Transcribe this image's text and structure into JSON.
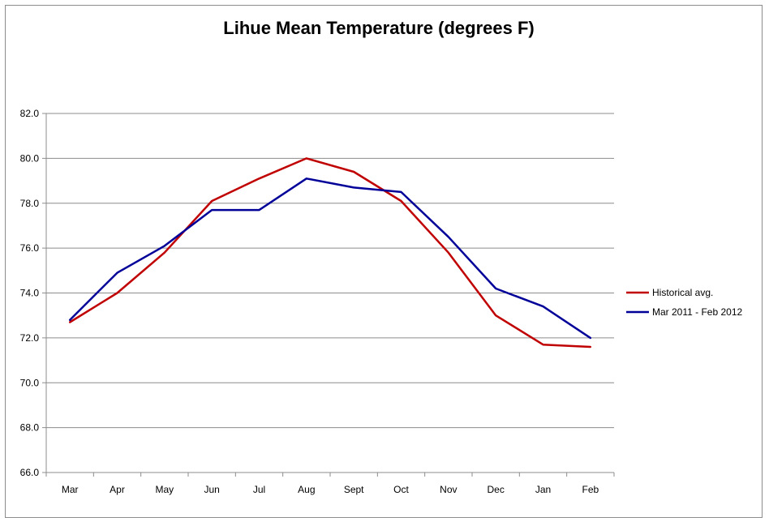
{
  "chart_data": {
    "type": "line",
    "title": "Lihue Mean Temperature (degrees F)",
    "xlabel": "",
    "ylabel": "",
    "categories": [
      "Mar",
      "Apr",
      "May",
      "Jun",
      "Jul",
      "Aug",
      "Sept",
      "Oct",
      "Nov",
      "Dec",
      "Jan",
      "Feb"
    ],
    "yticks": [
      "66.0",
      "68.0",
      "70.0",
      "72.0",
      "74.0",
      "76.0",
      "78.0",
      "80.0",
      "82.0"
    ],
    "ylim": [
      66,
      82
    ],
    "grid": true,
    "legend_position": "right",
    "series": [
      {
        "name": "Historical avg.",
        "color": "#c00000",
        "values": [
          72.7,
          74.0,
          75.8,
          78.1,
          79.1,
          80.0,
          79.4,
          78.1,
          75.8,
          73.0,
          71.7,
          71.6
        ]
      },
      {
        "name": "Mar 2011 - Feb 2012",
        "color": "#000099",
        "values": [
          72.8,
          74.9,
          76.1,
          77.7,
          77.7,
          79.1,
          78.7,
          78.5,
          76.5,
          74.2,
          73.4,
          72.0
        ]
      }
    ]
  }
}
